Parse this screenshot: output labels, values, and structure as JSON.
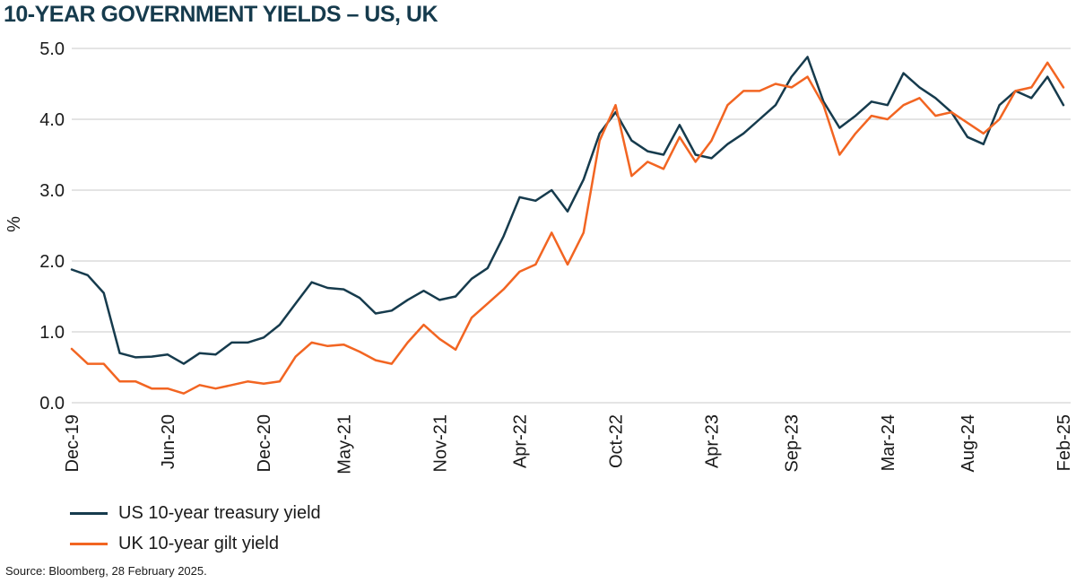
{
  "title": "10-YEAR GOVERNMENT YIELDS – US, UK",
  "source": "Source: Bloomberg, 28 February 2025.",
  "colors": {
    "us": "#163b4d",
    "uk": "#f26522",
    "grid": "#c8c8c8",
    "title": "#163b4d"
  },
  "chart_data": {
    "type": "line",
    "title": "10-YEAR GOVERNMENT YIELDS – US, UK",
    "ylabel": "%",
    "xlabel": "",
    "ylim": [
      0,
      5
    ],
    "yticks": [
      "0.0",
      "1.0",
      "2.0",
      "3.0",
      "4.0",
      "5.0"
    ],
    "xlim": [
      "Dec-19",
      "Feb-25"
    ],
    "xticks": [
      "Dec-19",
      "Jun-20",
      "Dec-20",
      "May-21",
      "Nov-21",
      "Apr-22",
      "Oct-22",
      "Apr-23",
      "Sep-23",
      "Mar-24",
      "Aug-24",
      "Feb-25"
    ],
    "grid": "horizontal",
    "legend_position": "bottom-left",
    "series": [
      {
        "name": "US 10-year treasury yield",
        "color": "#163b4d",
        "x": [
          "Dec-19",
          "Jan-20",
          "Feb-20",
          "Mar-20",
          "Apr-20",
          "May-20",
          "Jun-20",
          "Jul-20",
          "Aug-20",
          "Sep-20",
          "Oct-20",
          "Nov-20",
          "Dec-20",
          "Jan-21",
          "Feb-21",
          "Mar-21",
          "Apr-21",
          "May-21",
          "Jun-21",
          "Jul-21",
          "Aug-21",
          "Sep-21",
          "Oct-21",
          "Nov-21",
          "Dec-21",
          "Jan-22",
          "Feb-22",
          "Mar-22",
          "Apr-22",
          "May-22",
          "Jun-22",
          "Jul-22",
          "Aug-22",
          "Sep-22",
          "Oct-22",
          "Nov-22",
          "Dec-22",
          "Jan-23",
          "Feb-23",
          "Mar-23",
          "Apr-23",
          "May-23",
          "Jun-23",
          "Jul-23",
          "Aug-23",
          "Sep-23",
          "Oct-23",
          "Nov-23",
          "Dec-23",
          "Jan-24",
          "Feb-24",
          "Mar-24",
          "Apr-24",
          "May-24",
          "Jun-24",
          "Jul-24",
          "Aug-24",
          "Sep-24",
          "Oct-24",
          "Nov-24",
          "Dec-24",
          "Jan-25",
          "Feb-25"
        ],
        "values": [
          1.88,
          1.8,
          1.55,
          0.7,
          0.64,
          0.65,
          0.68,
          0.55,
          0.7,
          0.68,
          0.85,
          0.85,
          0.92,
          1.1,
          1.4,
          1.7,
          1.62,
          1.6,
          1.48,
          1.26,
          1.3,
          1.45,
          1.58,
          1.45,
          1.5,
          1.75,
          1.9,
          2.35,
          2.9,
          2.85,
          3.0,
          2.7,
          3.15,
          3.8,
          4.1,
          3.7,
          3.55,
          3.5,
          3.92,
          3.5,
          3.45,
          3.65,
          3.8,
          4.0,
          4.2,
          4.6,
          4.88,
          4.25,
          3.88,
          4.05,
          4.25,
          4.2,
          4.65,
          4.45,
          4.3,
          4.1,
          3.75,
          3.65,
          4.2,
          4.4,
          4.3,
          4.6,
          4.2
        ]
      },
      {
        "name": "UK 10-year gilt yield",
        "color": "#f26522",
        "x": [
          "Dec-19",
          "Jan-20",
          "Feb-20",
          "Mar-20",
          "Apr-20",
          "May-20",
          "Jun-20",
          "Jul-20",
          "Aug-20",
          "Sep-20",
          "Oct-20",
          "Nov-20",
          "Dec-20",
          "Jan-21",
          "Feb-21",
          "Mar-21",
          "Apr-21",
          "May-21",
          "Jun-21",
          "Jul-21",
          "Aug-21",
          "Sep-21",
          "Oct-21",
          "Nov-21",
          "Dec-21",
          "Jan-22",
          "Feb-22",
          "Mar-22",
          "Apr-22",
          "May-22",
          "Jun-22",
          "Jul-22",
          "Aug-22",
          "Sep-22",
          "Oct-22",
          "Nov-22",
          "Dec-22",
          "Jan-23",
          "Feb-23",
          "Mar-23",
          "Apr-23",
          "May-23",
          "Jun-23",
          "Jul-23",
          "Aug-23",
          "Sep-23",
          "Oct-23",
          "Nov-23",
          "Dec-23",
          "Jan-24",
          "Feb-24",
          "Mar-24",
          "Apr-24",
          "May-24",
          "Jun-24",
          "Jul-24",
          "Aug-24",
          "Sep-24",
          "Oct-24",
          "Nov-24",
          "Dec-24",
          "Jan-25",
          "Feb-25"
        ],
        "values": [
          0.76,
          0.55,
          0.55,
          0.3,
          0.3,
          0.2,
          0.2,
          0.13,
          0.25,
          0.2,
          0.25,
          0.3,
          0.27,
          0.3,
          0.65,
          0.85,
          0.8,
          0.82,
          0.72,
          0.6,
          0.55,
          0.85,
          1.1,
          0.9,
          0.75,
          1.2,
          1.4,
          1.6,
          1.85,
          1.95,
          2.4,
          1.95,
          2.4,
          3.7,
          4.2,
          3.2,
          3.4,
          3.3,
          3.75,
          3.4,
          3.7,
          4.2,
          4.4,
          4.4,
          4.5,
          4.45,
          4.6,
          4.2,
          3.5,
          3.8,
          4.05,
          4.0,
          4.2,
          4.3,
          4.05,
          4.1,
          3.95,
          3.8,
          4.0,
          4.4,
          4.45,
          4.8,
          4.45
        ]
      }
    ]
  }
}
